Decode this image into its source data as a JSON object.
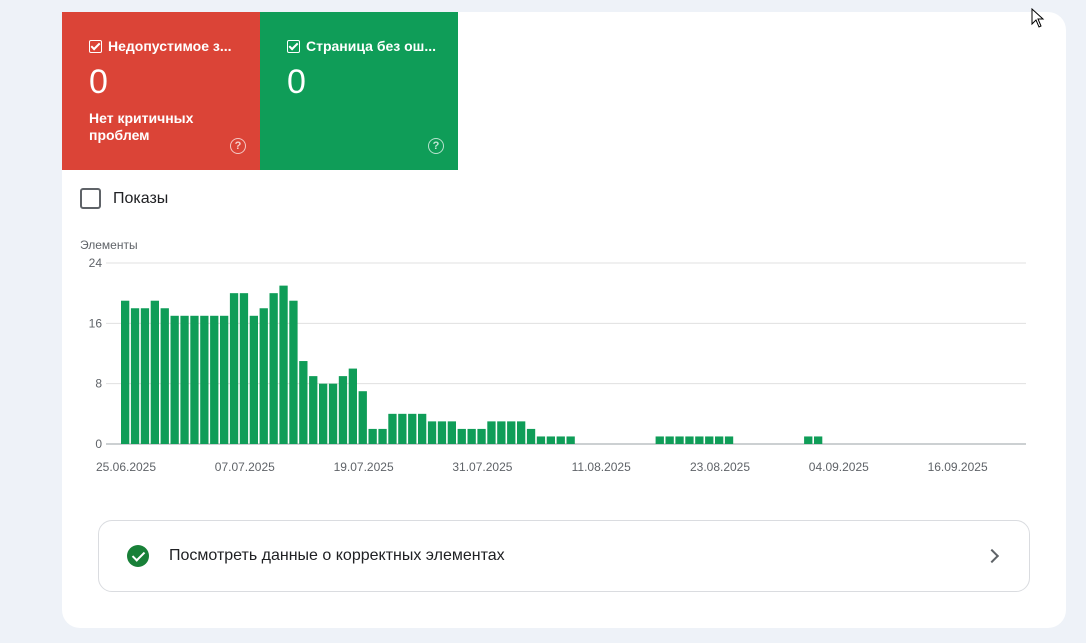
{
  "tiles": [
    {
      "label": "Недопустимое з...",
      "value": "0",
      "subtitle": "Нет критичных проблем",
      "color": "#db4437"
    },
    {
      "label": "Страница без ош...",
      "value": "0",
      "subtitle": "",
      "color": "#0f9d58"
    }
  ],
  "shows_label": "Показы",
  "link_label": "Посмотреть данные о корректных элементах",
  "chart_data": {
    "type": "bar",
    "ylabel": "Элементы",
    "ylim": [
      0,
      24
    ],
    "yticks": [
      0,
      8,
      16,
      24
    ],
    "xtick_labels": [
      "25.06.2025",
      "07.07.2025",
      "19.07.2025",
      "31.07.2025",
      "11.08.2025",
      "23.08.2025",
      "04.09.2025",
      "16.09.2025"
    ],
    "start_label": "25.06.2025",
    "bar_color": "#0f9d58",
    "values": [
      19,
      18,
      18,
      19,
      18,
      17,
      17,
      17,
      17,
      17,
      17,
      20,
      20,
      17,
      18,
      20,
      21,
      19,
      11,
      9,
      8,
      8,
      9,
      10,
      7,
      2,
      2,
      4,
      4,
      4,
      4,
      3,
      3,
      3,
      2,
      2,
      2,
      3,
      3,
      3,
      3,
      2,
      1,
      1,
      1,
      1,
      0,
      0,
      0,
      0,
      0,
      0,
      0,
      0,
      1,
      1,
      1,
      1,
      1,
      1,
      1,
      1,
      0,
      0,
      0,
      0,
      0,
      0,
      0,
      1,
      1,
      0,
      0,
      0,
      0,
      0,
      0,
      0,
      0,
      0,
      0,
      0,
      0,
      0,
      0,
      0,
      0,
      0,
      0,
      0,
      0,
      0,
      0
    ]
  }
}
